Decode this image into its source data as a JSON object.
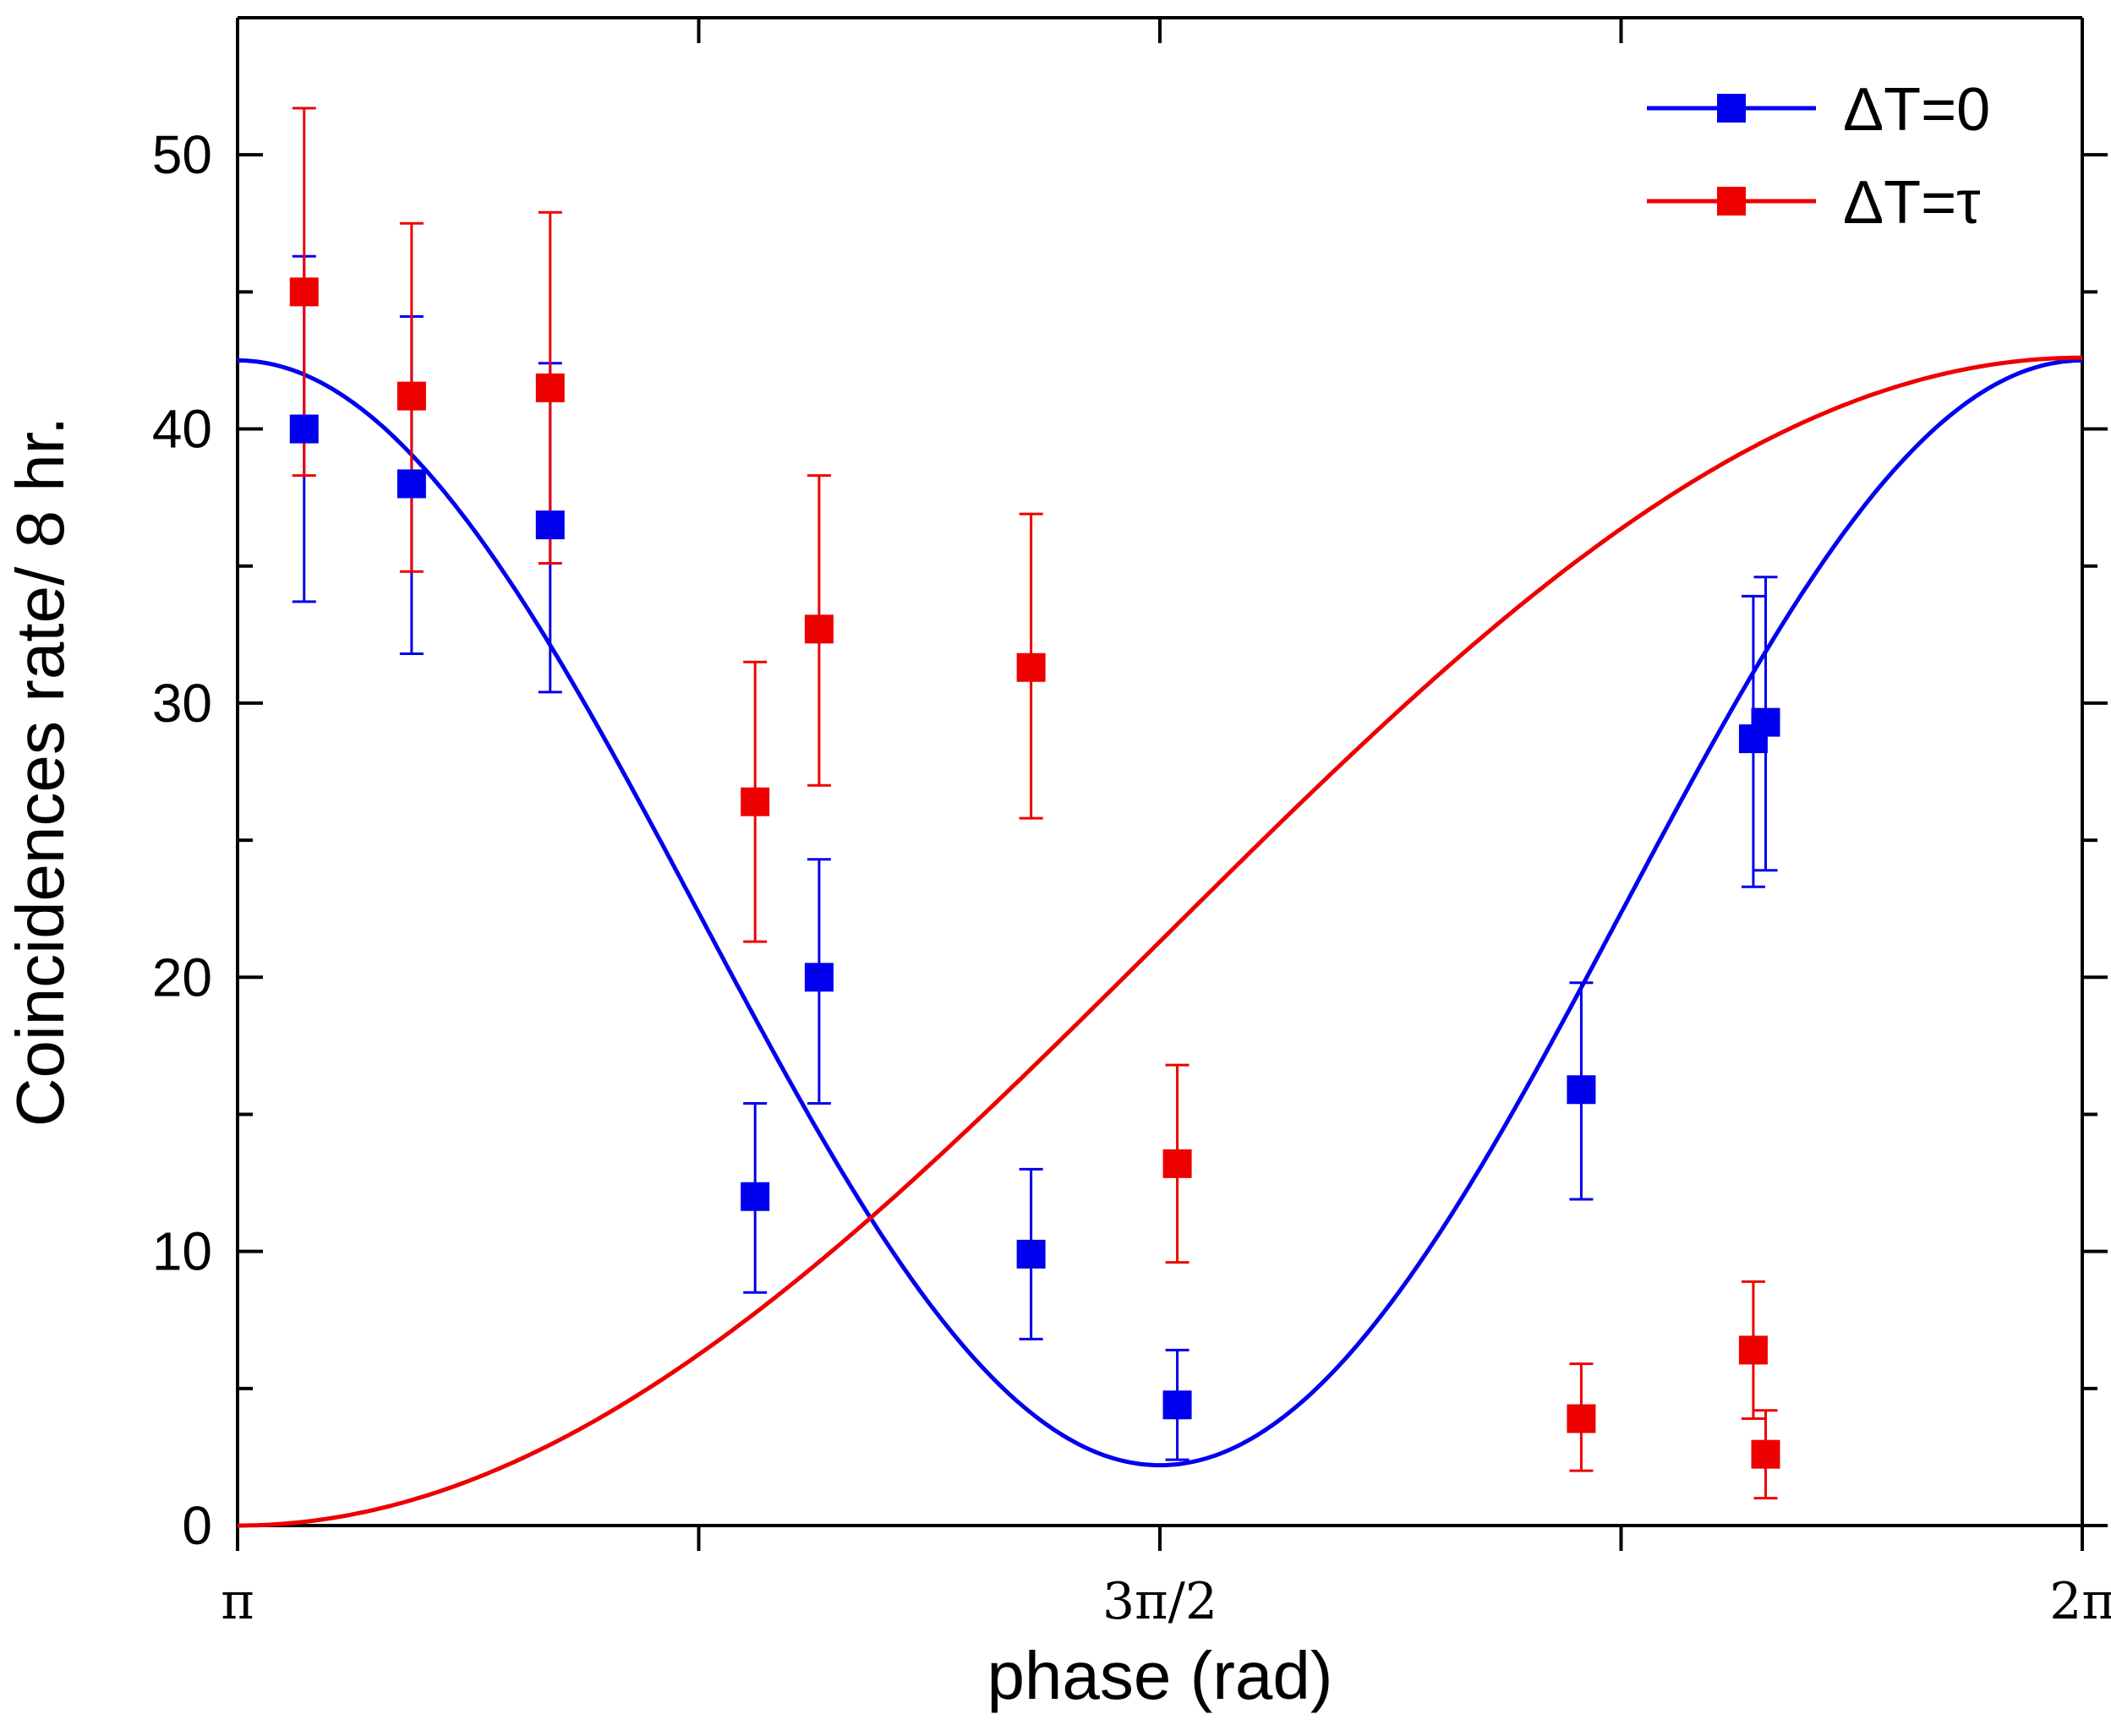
{
  "chart_data": {
    "type": "scatter",
    "xlabel": "phase (rad)",
    "ylabel": "Coincidences rate/ 8 hr.",
    "xlim": [
      3.14159,
      6.28319
    ],
    "ylim": [
      0,
      55
    ],
    "x_ticks": [
      {
        "value": 3.14159,
        "label": "π"
      },
      {
        "value": 3.92699,
        "label": ""
      },
      {
        "value": 4.71239,
        "label": "3π/2"
      },
      {
        "value": 5.49779,
        "label": ""
      },
      {
        "value": 6.28319,
        "label": "2π"
      }
    ],
    "y_ticks": [
      {
        "value": 0,
        "label": "0"
      },
      {
        "value": 5,
        "label": ""
      },
      {
        "value": 10,
        "label": "10"
      },
      {
        "value": 15,
        "label": ""
      },
      {
        "value": 20,
        "label": "20"
      },
      {
        "value": 25,
        "label": ""
      },
      {
        "value": 30,
        "label": "30"
      },
      {
        "value": 35,
        "label": ""
      },
      {
        "value": 40,
        "label": "40"
      },
      {
        "value": 45,
        "label": ""
      },
      {
        "value": 50,
        "label": "50"
      }
    ],
    "legend_position": "top-right",
    "series": [
      {
        "name": "ΔT=0",
        "color": "#0000ee",
        "points": [
          {
            "x": 3.255,
            "y": 40.0,
            "ylow": 33.7,
            "yhigh": 46.3
          },
          {
            "x": 3.438,
            "y": 38.0,
            "ylow": 31.8,
            "yhigh": 44.1
          },
          {
            "x": 3.674,
            "y": 36.5,
            "ylow": 30.4,
            "yhigh": 42.4
          },
          {
            "x": 4.023,
            "y": 12.0,
            "ylow": 8.5,
            "yhigh": 15.4
          },
          {
            "x": 4.132,
            "y": 20.0,
            "ylow": 15.4,
            "yhigh": 24.3
          },
          {
            "x": 4.493,
            "y": 9.9,
            "ylow": 6.8,
            "yhigh": 13.0
          },
          {
            "x": 4.742,
            "y": 4.4,
            "ylow": 2.4,
            "yhigh": 6.4
          },
          {
            "x": 5.43,
            "y": 15.9,
            "ylow": 11.9,
            "yhigh": 19.8
          },
          {
            "x": 5.723,
            "y": 28.7,
            "ylow": 23.3,
            "yhigh": 33.9
          },
          {
            "x": 5.744,
            "y": 29.3,
            "ylow": 23.9,
            "yhigh": 34.6
          }
        ],
        "fit": {
          "model": "offset + amplitude*(1+cos(2*x))/2",
          "offset": 2.2,
          "amplitude": 40.3
        }
      },
      {
        "name": "ΔT=τ",
        "color": "#ee0000",
        "points": [
          {
            "x": 3.255,
            "y": 45.0,
            "ylow": 38.3,
            "yhigh": 51.7
          },
          {
            "x": 3.438,
            "y": 41.2,
            "ylow": 34.8,
            "yhigh": 47.5
          },
          {
            "x": 3.674,
            "y": 41.5,
            "ylow": 35.1,
            "yhigh": 47.9
          },
          {
            "x": 4.023,
            "y": 26.4,
            "ylow": 21.3,
            "yhigh": 31.5
          },
          {
            "x": 4.132,
            "y": 32.7,
            "ylow": 27.0,
            "yhigh": 38.3
          },
          {
            "x": 4.493,
            "y": 31.3,
            "ylow": 25.8,
            "yhigh": 36.9
          },
          {
            "x": 4.742,
            "y": 13.2,
            "ylow": 9.6,
            "yhigh": 16.8
          },
          {
            "x": 5.43,
            "y": 3.9,
            "ylow": 2.0,
            "yhigh": 5.9
          },
          {
            "x": 5.723,
            "y": 6.4,
            "ylow": 3.9,
            "yhigh": 8.9
          },
          {
            "x": 5.744,
            "y": 2.6,
            "ylow": 1.0,
            "yhigh": 4.2
          }
        ],
        "fit": {
          "model": "offset + amplitude*(1+cos(x))/2",
          "offset": 0.0,
          "amplitude": 42.6
        }
      }
    ]
  }
}
